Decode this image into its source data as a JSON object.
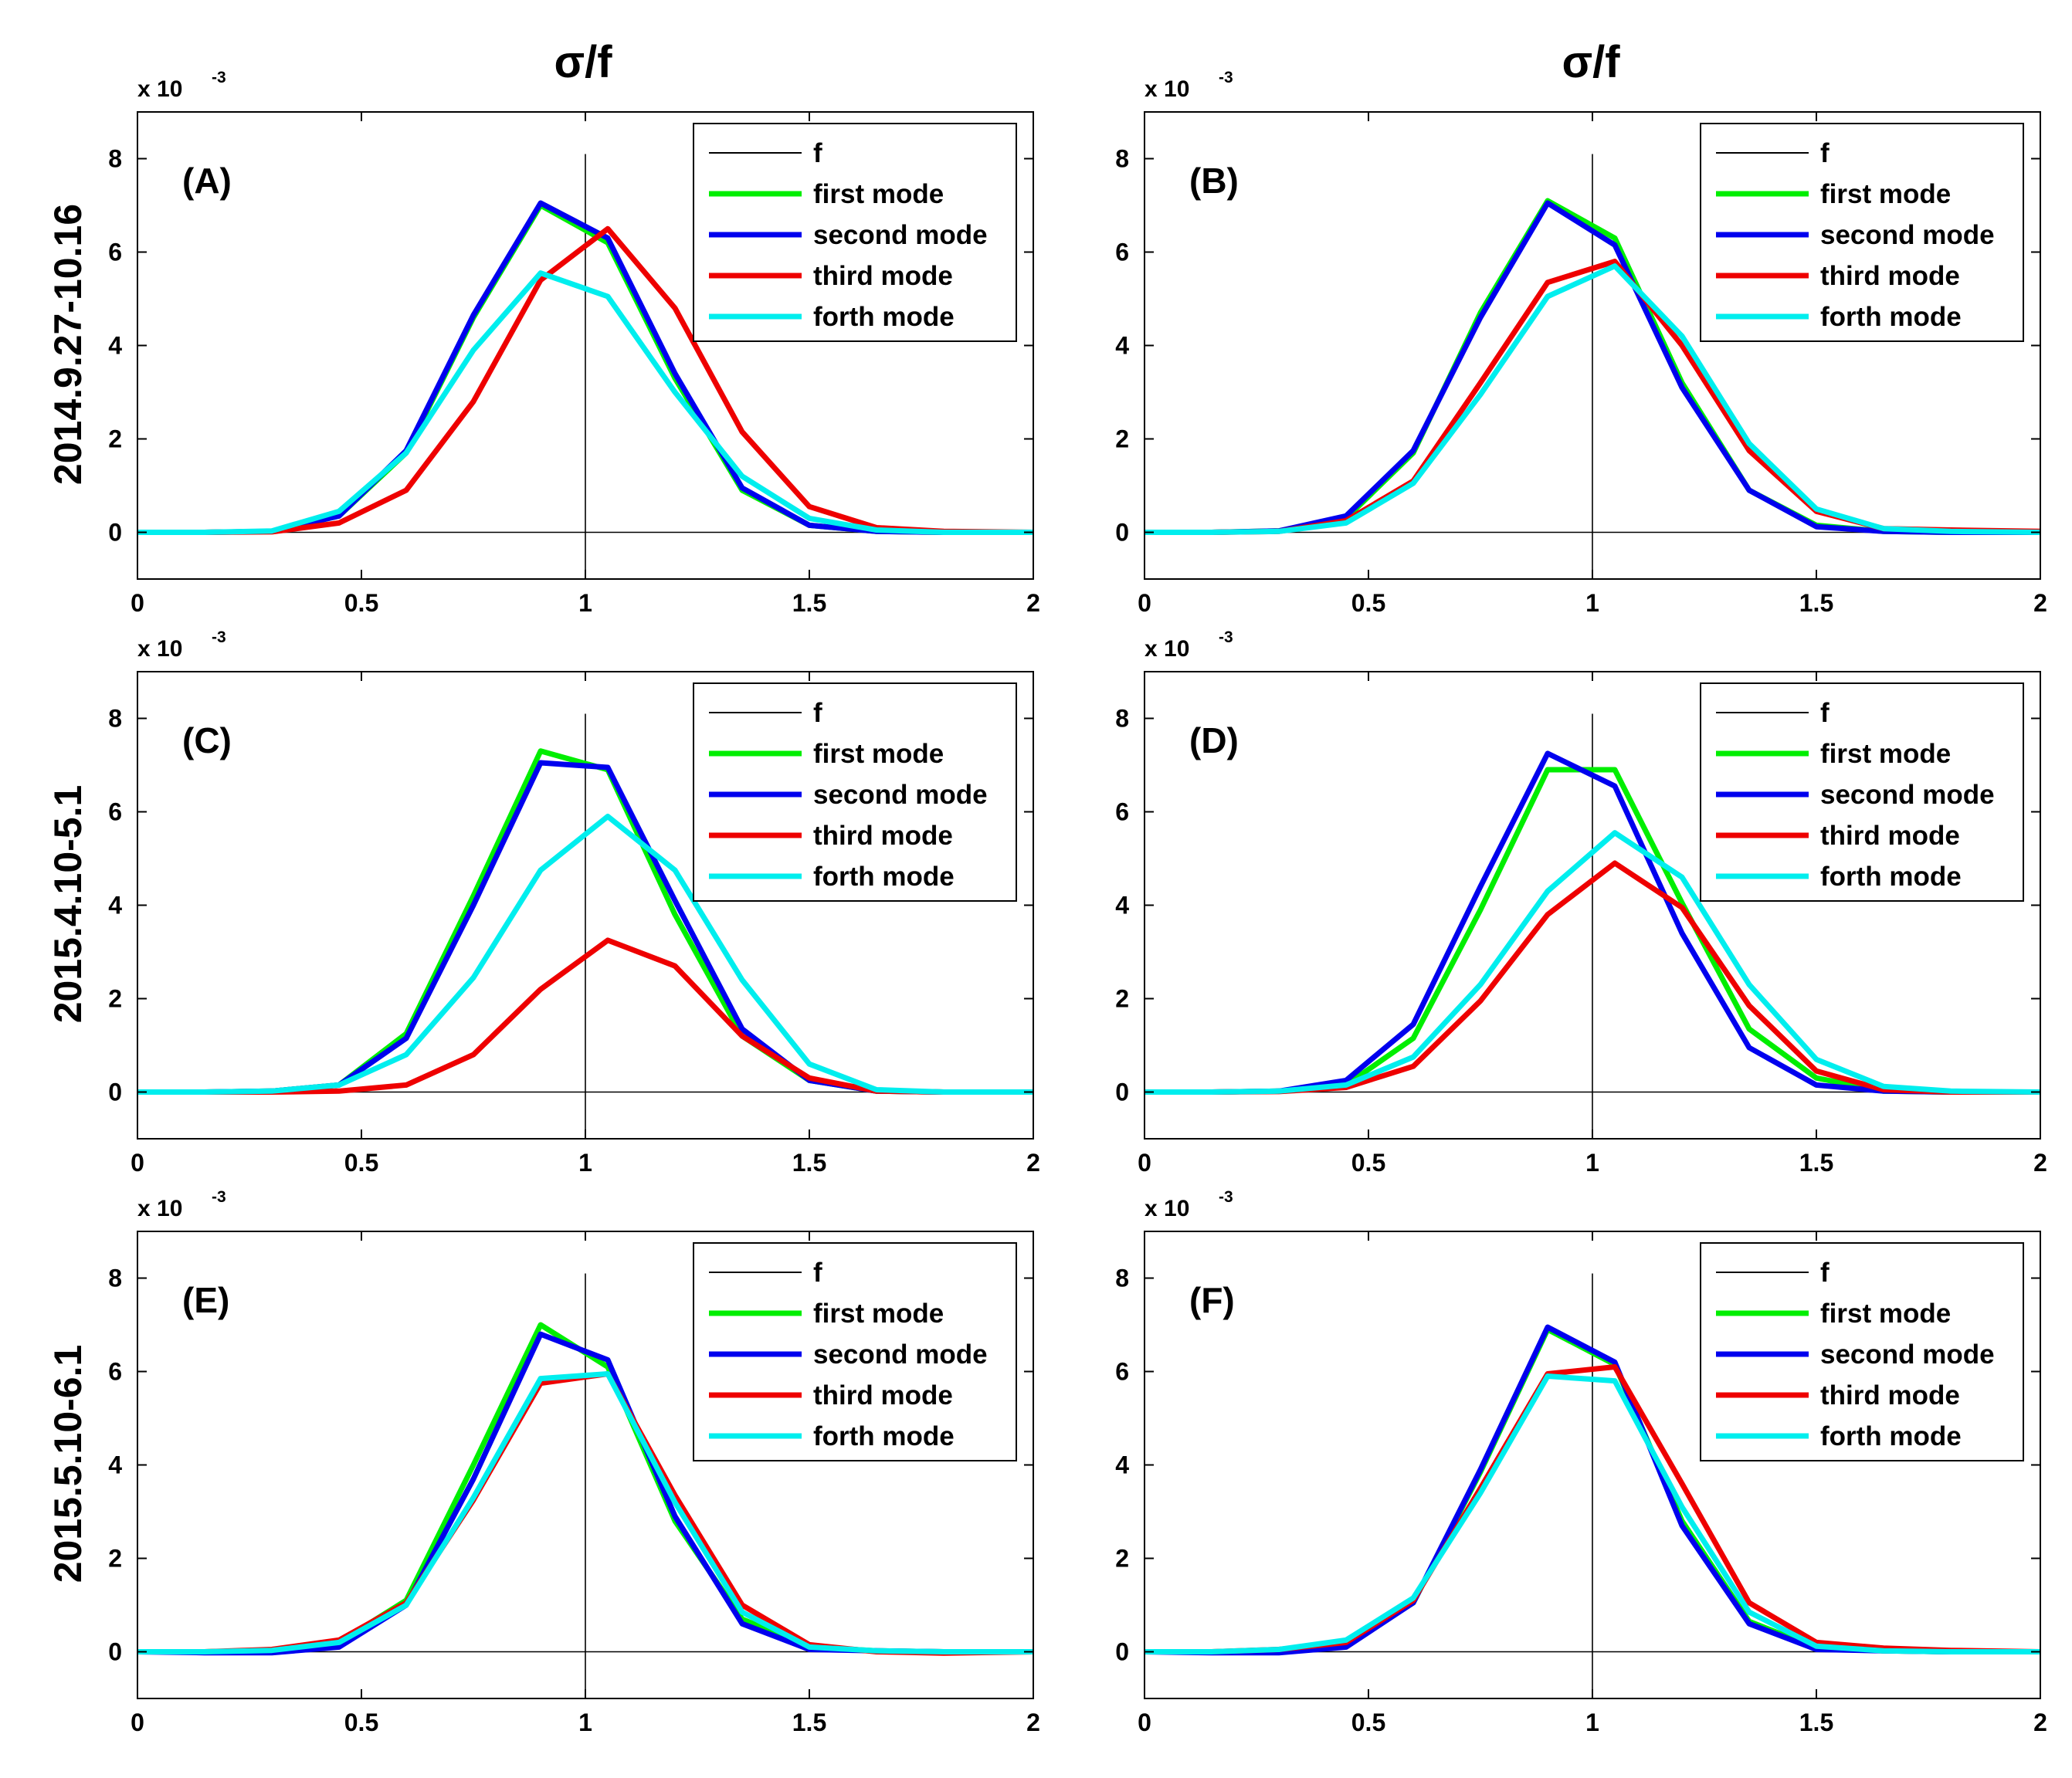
{
  "figure": {
    "column_titles": [
      "σ/f",
      "σ/f"
    ],
    "row_labels": [
      "2014.9.27-10.16",
      "2015.4.10-5.1",
      "2015.5.10-6.1"
    ],
    "y_exponent": {
      "base": "x 10",
      "power": "-3"
    }
  },
  "chart_data": [
    {
      "type": "line",
      "label": "(A)",
      "row": 0,
      "col": 0,
      "xlim": [
        0,
        2
      ],
      "ylim": [
        -1,
        9
      ],
      "xticks": [
        0,
        0.5,
        1,
        1.5,
        2
      ],
      "xtick_labels": [
        "0",
        "0.5",
        "1",
        "1.5",
        "2"
      ],
      "yticks": [
        0,
        2,
        4,
        6,
        8
      ],
      "ytick_labels": [
        "0",
        "2",
        "4",
        "6",
        "8"
      ],
      "vline_x": 1,
      "legend_position": "top-right",
      "x": [
        0,
        0.15,
        0.3,
        0.45,
        0.6,
        0.75,
        0.9,
        1.05,
        1.2,
        1.35,
        1.5,
        1.65,
        1.8,
        2.0
      ],
      "series": [
        {
          "name": "first mode",
          "color": "#00ee00",
          "values": [
            0,
            0,
            0.02,
            0.35,
            1.7,
            4.6,
            7.0,
            6.2,
            3.3,
            0.9,
            0.15,
            0.02,
            0,
            0
          ]
        },
        {
          "name": "second mode",
          "color": "#0000ee",
          "values": [
            0,
            0,
            0.02,
            0.35,
            1.75,
            4.65,
            7.05,
            6.3,
            3.4,
            0.95,
            0.15,
            0.02,
            0,
            0
          ]
        },
        {
          "name": "third mode",
          "color": "#ee0000",
          "values": [
            0,
            0,
            0.01,
            0.2,
            0.9,
            2.8,
            5.4,
            6.5,
            4.8,
            2.15,
            0.55,
            0.1,
            0.02,
            0
          ]
        },
        {
          "name": "forth mode",
          "color": "#00eeee",
          "values": [
            0,
            0,
            0.03,
            0.45,
            1.7,
            3.9,
            5.55,
            5.05,
            3.0,
            1.2,
            0.3,
            0.05,
            0,
            0
          ]
        }
      ]
    },
    {
      "type": "line",
      "label": "(B)",
      "row": 0,
      "col": 1,
      "xlim": [
        0,
        2
      ],
      "ylim": [
        -1,
        9
      ],
      "xticks": [
        0,
        0.5,
        1,
        1.5,
        2
      ],
      "xtick_labels": [
        "0",
        "0.5",
        "1",
        "1.5",
        "2"
      ],
      "yticks": [
        0,
        2,
        4,
        6,
        8
      ],
      "ytick_labels": [
        "0",
        "2",
        "4",
        "6",
        "8"
      ],
      "vline_x": 1,
      "legend_position": "top-right",
      "x": [
        0,
        0.15,
        0.3,
        0.45,
        0.6,
        0.75,
        0.9,
        1.05,
        1.2,
        1.35,
        1.5,
        1.65,
        1.8,
        2.0
      ],
      "series": [
        {
          "name": "first mode",
          "color": "#00ee00",
          "values": [
            0,
            0,
            0.03,
            0.3,
            1.7,
            4.7,
            7.1,
            6.3,
            3.2,
            0.9,
            0.15,
            0.02,
            0,
            0
          ]
        },
        {
          "name": "second mode",
          "color": "#0000ee",
          "values": [
            0,
            0,
            0.03,
            0.35,
            1.75,
            4.6,
            7.05,
            6.15,
            3.1,
            0.9,
            0.12,
            0.02,
            0,
            0
          ]
        },
        {
          "name": "third mode",
          "color": "#ee0000",
          "values": [
            0,
            0,
            0.02,
            0.25,
            1.1,
            3.2,
            5.35,
            5.8,
            4.0,
            1.75,
            0.45,
            0.08,
            0.05,
            0.02
          ]
        },
        {
          "name": "forth mode",
          "color": "#00eeee",
          "values": [
            0,
            0,
            0.02,
            0.2,
            1.05,
            2.95,
            5.05,
            5.7,
            4.2,
            1.9,
            0.5,
            0.08,
            0.02,
            0
          ]
        }
      ]
    },
    {
      "type": "line",
      "label": "(C)",
      "row": 1,
      "col": 0,
      "xlim": [
        0,
        2
      ],
      "ylim": [
        -1,
        9
      ],
      "xticks": [
        0,
        0.5,
        1,
        1.5,
        2
      ],
      "xtick_labels": [
        "0",
        "0.5",
        "1",
        "1.5",
        "2"
      ],
      "yticks": [
        0,
        2,
        4,
        6,
        8
      ],
      "ytick_labels": [
        "0",
        "2",
        "4",
        "6",
        "8"
      ],
      "vline_x": 1,
      "legend_position": "top-right",
      "x": [
        0,
        0.15,
        0.3,
        0.45,
        0.6,
        0.75,
        0.9,
        1.05,
        1.2,
        1.35,
        1.5,
        1.65,
        1.8,
        2.0
      ],
      "series": [
        {
          "name": "first mode",
          "color": "#00ee00",
          "values": [
            0,
            0,
            0.02,
            0.15,
            1.25,
            4.2,
            7.3,
            6.9,
            3.8,
            1.2,
            0.25,
            0.02,
            0,
            0
          ]
        },
        {
          "name": "second mode",
          "color": "#0000ee",
          "values": [
            0,
            0,
            0.02,
            0.15,
            1.15,
            4.0,
            7.05,
            6.95,
            4.1,
            1.35,
            0.25,
            0.02,
            0,
            0
          ]
        },
        {
          "name": "third mode",
          "color": "#ee0000",
          "values": [
            0,
            0,
            0,
            0.02,
            0.15,
            0.8,
            2.2,
            3.25,
            2.7,
            1.2,
            0.3,
            0.02,
            0,
            0
          ]
        },
        {
          "name": "forth mode",
          "color": "#00eeee",
          "values": [
            0,
            0,
            0.02,
            0.15,
            0.8,
            2.45,
            4.75,
            5.9,
            4.75,
            2.4,
            0.6,
            0.05,
            0,
            0
          ]
        }
      ]
    },
    {
      "type": "line",
      "label": "(D)",
      "row": 1,
      "col": 1,
      "xlim": [
        0,
        2
      ],
      "ylim": [
        -1,
        9
      ],
      "xticks": [
        0,
        0.5,
        1,
        1.5,
        2
      ],
      "xtick_labels": [
        "0",
        "0.5",
        "1",
        "1.5",
        "2"
      ],
      "yticks": [
        0,
        2,
        4,
        6,
        8
      ],
      "ytick_labels": [
        "0",
        "2",
        "4",
        "6",
        "8"
      ],
      "vline_x": 1,
      "legend_position": "top-right",
      "x": [
        0,
        0.15,
        0.3,
        0.45,
        0.6,
        0.75,
        0.9,
        1.05,
        1.2,
        1.35,
        1.5,
        1.65,
        1.8,
        2.0
      ],
      "series": [
        {
          "name": "first mode",
          "color": "#00ee00",
          "values": [
            0,
            0,
            0.02,
            0.15,
            1.15,
            3.9,
            6.9,
            6.9,
            4.05,
            1.35,
            0.3,
            0.02,
            0,
            0
          ]
        },
        {
          "name": "second mode",
          "color": "#0000ee",
          "values": [
            0,
            0,
            0.02,
            0.25,
            1.45,
            4.4,
            7.25,
            6.55,
            3.4,
            0.95,
            0.15,
            0.02,
            0,
            0
          ]
        },
        {
          "name": "third mode",
          "color": "#ee0000",
          "values": [
            0,
            0,
            0.01,
            0.1,
            0.55,
            1.95,
            3.8,
            4.9,
            3.95,
            1.85,
            0.45,
            0.05,
            0,
            0
          ]
        },
        {
          "name": "forth mode",
          "color": "#00eeee",
          "values": [
            0,
            0,
            0.02,
            0.15,
            0.75,
            2.3,
            4.3,
            5.55,
            4.6,
            2.3,
            0.7,
            0.12,
            0.02,
            0
          ]
        }
      ]
    },
    {
      "type": "line",
      "label": "(E)",
      "row": 2,
      "col": 0,
      "xlim": [
        0,
        2
      ],
      "ylim": [
        -1,
        9
      ],
      "xticks": [
        0,
        0.5,
        1,
        1.5,
        2
      ],
      "xtick_labels": [
        "0",
        "0.5",
        "1",
        "1.5",
        "2"
      ],
      "yticks": [
        0,
        2,
        4,
        6,
        8
      ],
      "ytick_labels": [
        "0",
        "2",
        "4",
        "6",
        "8"
      ],
      "vline_x": 1,
      "legend_position": "top-right",
      "x": [
        0,
        0.15,
        0.3,
        0.45,
        0.6,
        0.75,
        0.9,
        1.05,
        1.2,
        1.35,
        1.5,
        1.65,
        1.8,
        2.0
      ],
      "series": [
        {
          "name": "first mode",
          "color": "#00ee00",
          "values": [
            0,
            0,
            0.03,
            0.2,
            1.1,
            4.0,
            7.0,
            6.1,
            2.8,
            0.7,
            0.1,
            0.02,
            0,
            0
          ]
        },
        {
          "name": "second mode",
          "color": "#0000ee",
          "values": [
            0,
            -0.02,
            -0.02,
            0.1,
            1.0,
            3.7,
            6.8,
            6.25,
            2.9,
            0.6,
            0.05,
            0.02,
            0,
            0
          ]
        },
        {
          "name": "third mode",
          "color": "#ee0000",
          "values": [
            0,
            0,
            0.05,
            0.25,
            1.05,
            3.25,
            5.75,
            5.95,
            3.35,
            1.0,
            0.15,
            0,
            -0.03,
            0
          ]
        },
        {
          "name": "forth mode",
          "color": "#00eeee",
          "values": [
            0,
            0,
            0.03,
            0.2,
            1.0,
            3.3,
            5.85,
            5.95,
            3.2,
            0.85,
            0.1,
            0.02,
            0,
            0
          ]
        }
      ]
    },
    {
      "type": "line",
      "label": "(F)",
      "row": 2,
      "col": 1,
      "xlim": [
        0,
        2
      ],
      "ylim": [
        -1,
        9
      ],
      "xticks": [
        0,
        0.5,
        1,
        1.5,
        2
      ],
      "xtick_labels": [
        "0",
        "0.5",
        "1",
        "1.5",
        "2"
      ],
      "yticks": [
        0,
        2,
        4,
        6,
        8
      ],
      "ytick_labels": [
        "0",
        "2",
        "4",
        "6",
        "8"
      ],
      "vline_x": 1,
      "legend_position": "top-right",
      "x": [
        0,
        0.15,
        0.3,
        0.45,
        0.6,
        0.75,
        0.9,
        1.05,
        1.2,
        1.35,
        1.5,
        1.65,
        1.8,
        2.0
      ],
      "series": [
        {
          "name": "first mode",
          "color": "#00ee00",
          "values": [
            0,
            0,
            0.02,
            0.15,
            1.05,
            3.85,
            6.9,
            6.15,
            2.8,
            0.65,
            0.08,
            0.02,
            0,
            0
          ]
        },
        {
          "name": "second mode",
          "color": "#0000ee",
          "values": [
            0,
            -0.02,
            -0.02,
            0.1,
            1.05,
            3.9,
            6.95,
            6.2,
            2.7,
            0.6,
            0.05,
            0.02,
            0,
            0
          ]
        },
        {
          "name": "third mode",
          "color": "#ee0000",
          "values": [
            0,
            0,
            0.05,
            0.2,
            1.1,
            3.5,
            5.95,
            6.1,
            3.6,
            1.05,
            0.2,
            0.08,
            0.03,
            0
          ]
        },
        {
          "name": "forth mode",
          "color": "#00eeee",
          "values": [
            0,
            0,
            0.05,
            0.25,
            1.15,
            3.4,
            5.9,
            5.8,
            3.1,
            0.85,
            0.12,
            0.02,
            0,
            0
          ]
        }
      ]
    }
  ],
  "legend": {
    "entries": [
      {
        "label": "f",
        "color": "#000000",
        "thin": true
      },
      {
        "label": "first mode",
        "color": "#00ee00"
      },
      {
        "label": "second mode",
        "color": "#0000ee"
      },
      {
        "label": "third mode",
        "color": "#ee0000"
      },
      {
        "label": "forth mode",
        "color": "#00eeee"
      }
    ]
  }
}
